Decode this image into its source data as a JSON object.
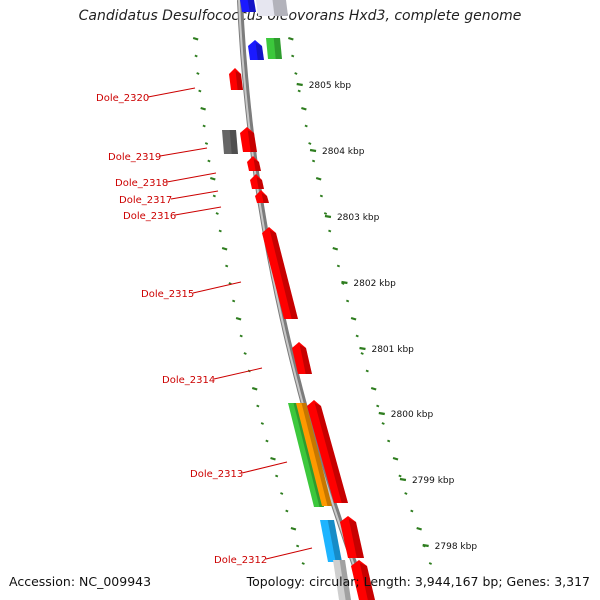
{
  "title": "Candidatus Desulfococcus oleovorans Hxd3, complete genome",
  "accession_text": "Accession: NC_009943",
  "topology_text": "Topology: circular; Length: 3,944,167 bp; Genes: 3,317",
  "colors": {
    "backbone": "#8a8a8a",
    "ruler": "#2e7d1f",
    "gene_label": "#cc0000",
    "red": "#ff0000",
    "green": "#3cc83c",
    "orange": "#ff9900",
    "cyan": "#1eb4ff",
    "gray": "#666666",
    "blue": "#1a1aff"
  },
  "ruler_labels": [
    "2805 kbp",
    "2804 kbp",
    "2803 kbp",
    "2802 kbp",
    "2801 kbp",
    "2800 kbp",
    "2799 kbp",
    "2798 kbp"
  ],
  "gene_labels": [
    "Dole_2320",
    "Dole_2319",
    "Dole_2318",
    "Dole_2317",
    "Dole_2316",
    "Dole_2315",
    "Dole_2314",
    "Dole_2313",
    "Dole_2312"
  ]
}
